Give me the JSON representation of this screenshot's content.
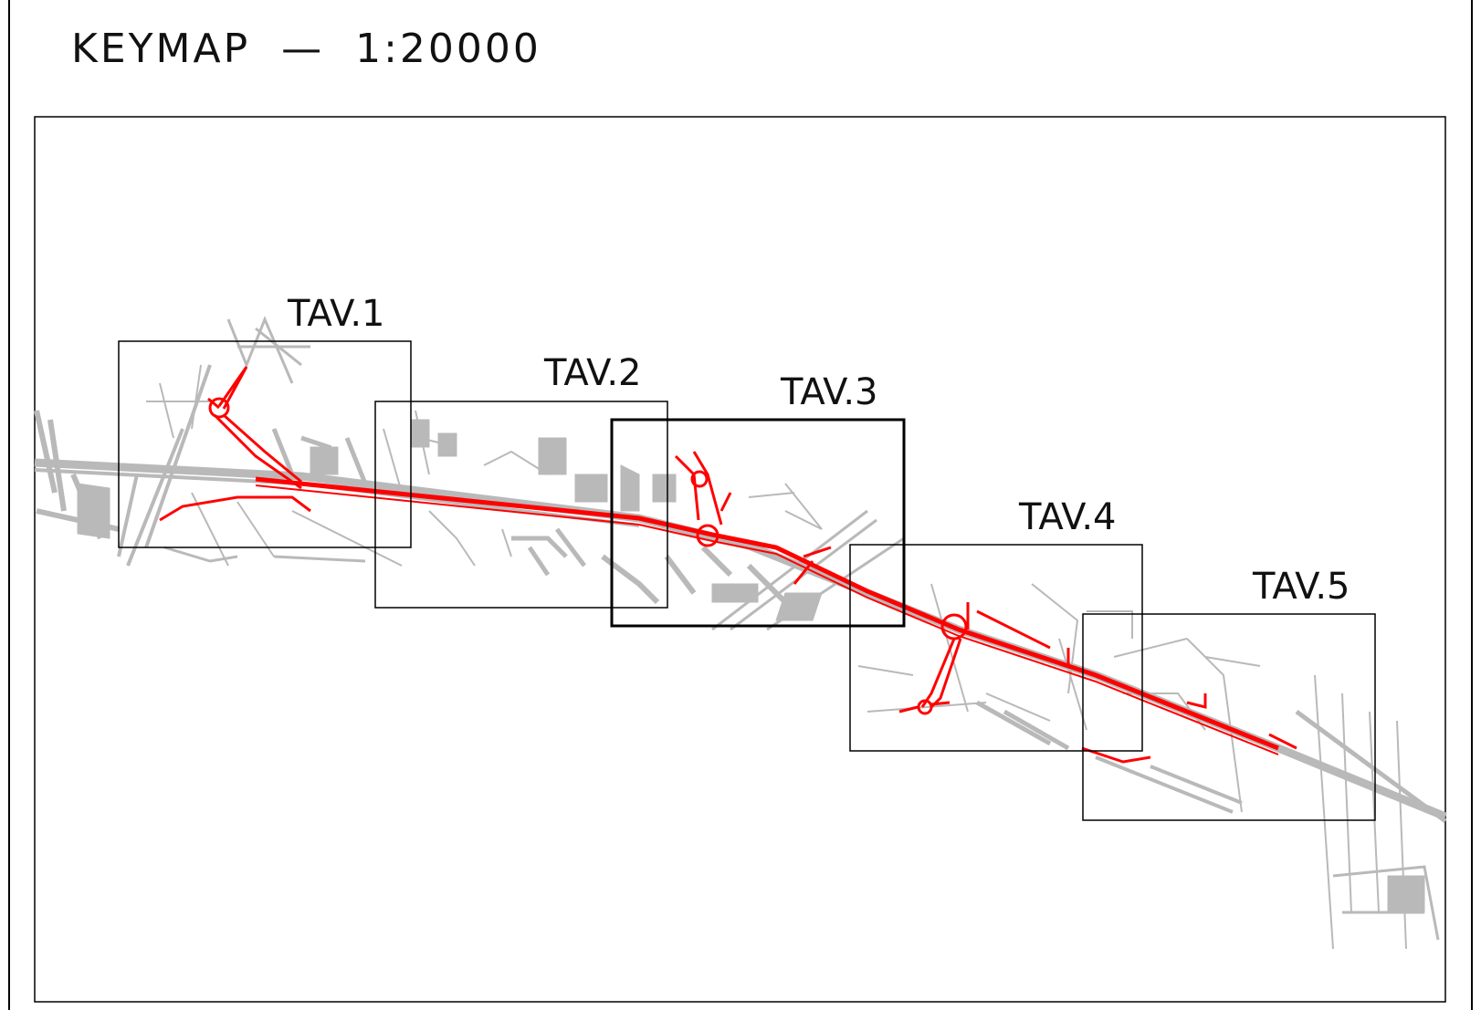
{
  "title": "KEYMAP  —  1:20000",
  "colors": {
    "frame": "#000000",
    "context": "#b9b9b9",
    "project": "#ff0000"
  },
  "sheets": [
    {
      "label": "TAV.1",
      "active": false
    },
    {
      "label": "TAV.2",
      "active": false
    },
    {
      "label": "TAV.3",
      "active": true
    },
    {
      "label": "TAV.4",
      "active": false
    },
    {
      "label": "TAV.5",
      "active": false
    }
  ]
}
